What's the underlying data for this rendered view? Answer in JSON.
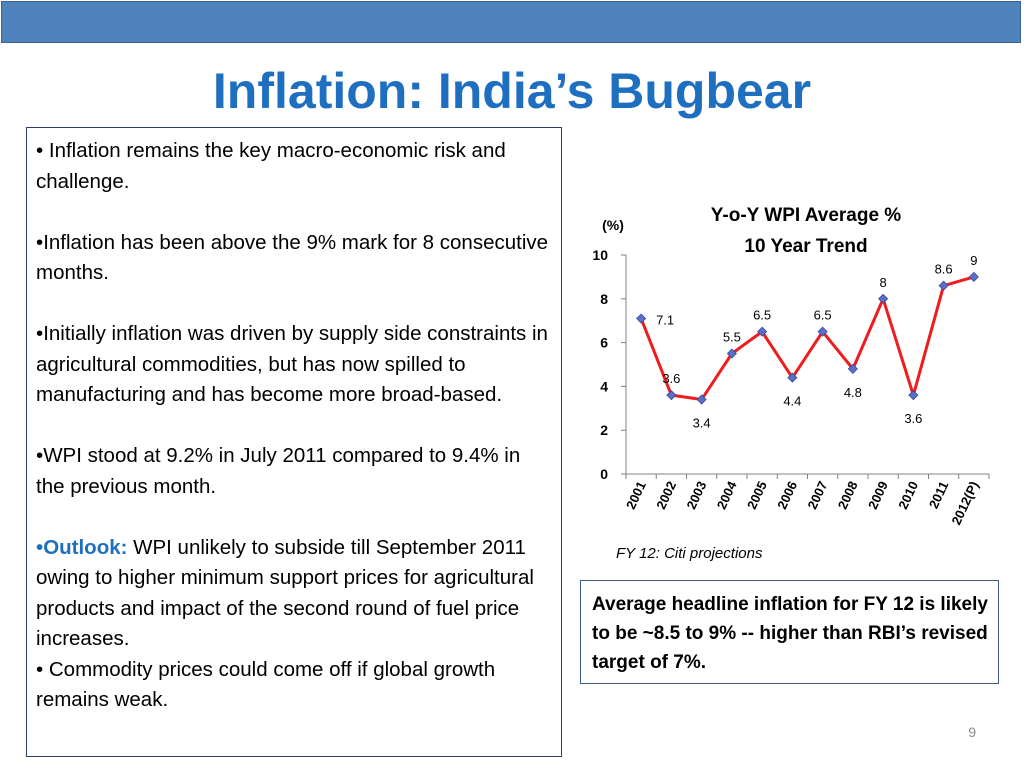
{
  "slide": {
    "title": "Inflation: India’s Bugbear",
    "page_number": "9",
    "bullets": {
      "b1_prefix": "• ",
      "b1": "Inflation remains the key macro-economic risk and challenge.",
      "b2_prefix": "•",
      "b2": "Inflation has been above the 9% mark for 8 consecutive months.",
      "b3_prefix": "•",
      "b3": "Initially inflation was driven by supply side constraints in agricultural commodities, but has now spilled to manufacturing and has become more broad-based.",
      "b4_prefix": "•",
      "b4": "WPI stood at 9.2% in July 2011 compared to 9.4% in the previous month.",
      "b5_prefix": "•",
      "b5_label": "Outlook:",
      "b5": " WPI unlikely to subside till September 2011 owing to higher minimum support prices for agricultural products and impact of the second round of  fuel price increases.",
      "b6_prefix": "• ",
      "b6": "Commodity prices could come off if global growth remains weak."
    },
    "note": "FY 12: Citi projections",
    "callout": "Average headline inflation for FY 12 is likely to be ~8.5 to 9% -- higher than RBI’s revised  target of 7%."
  },
  "chart_data": {
    "type": "line",
    "title": "Y-o-Y WPI Average %",
    "subtitle": "10 Year Trend",
    "ylabel": "(%)",
    "ylim": [
      0,
      10
    ],
    "yticks": [
      "0",
      "2",
      "4",
      "6",
      "8",
      "10"
    ],
    "categories": [
      "2001",
      "2002",
      "2003",
      "2004",
      "2005",
      "2006",
      "2007",
      "2008",
      "2009",
      "2010",
      "2011",
      "2012(P)"
    ],
    "series": [
      {
        "values": [
          7.1,
          3.6,
          3.4,
          5.5,
          6.5,
          4.4,
          6.5,
          4.8,
          8,
          3.6,
          8.6,
          9
        ]
      }
    ],
    "data_labels": [
      "7.1",
      "3.6",
      "3.4",
      "5.5",
      "6.5",
      "4.4",
      "6.5",
      "4.8",
      "8",
      "3.6",
      "8.6",
      "9"
    ],
    "grid": false,
    "legend": "none",
    "line_color": "#ee1c1c",
    "marker_color": "#5a6fc8"
  }
}
